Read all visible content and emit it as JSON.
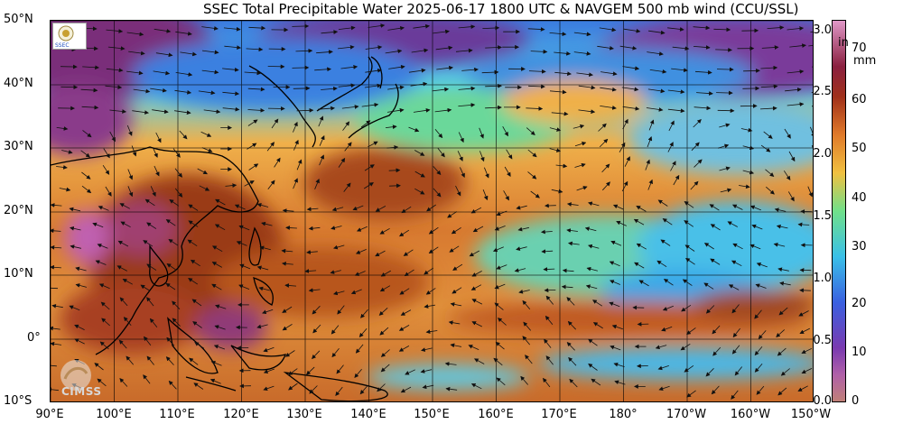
{
  "title": "SSEC Total Precipitable Water  2025-06-17 1800 UTC & NAVGEM 500 mb wind (CCU/SSL)",
  "lat_labels": [
    "50°N",
    "40°N",
    "30°N",
    "20°N",
    "10°N",
    "0°",
    "10°S"
  ],
  "lon_labels": [
    "90°E",
    "100°E",
    "110°E",
    "120°E",
    "130°E",
    "140°E",
    "150°E",
    "160°E",
    "170°E",
    "180°",
    "170°W",
    "160°W",
    "150°W"
  ],
  "colorbar": {
    "in_unit": "in",
    "mm_unit": "mm",
    "in_ticks": [
      "0.0",
      "0.5",
      "1.0",
      "1.5",
      "2.0",
      "2.5",
      "3.0"
    ],
    "mm_ticks": [
      "0",
      "10",
      "20",
      "30",
      "40",
      "50",
      "60",
      "70"
    ]
  },
  "logos": {
    "ssec": "SSEC",
    "cimss": "CIMSS"
  },
  "colors": {
    "very_dry": "#7a2f7a",
    "dry": "#2f6fd8",
    "moderate": "#3fc9e0",
    "mid": "#7ee08a",
    "moist": "#f2b24a",
    "wet": "#d8702a",
    "very_wet": "#8a2a10",
    "extreme": "#b04090"
  }
}
